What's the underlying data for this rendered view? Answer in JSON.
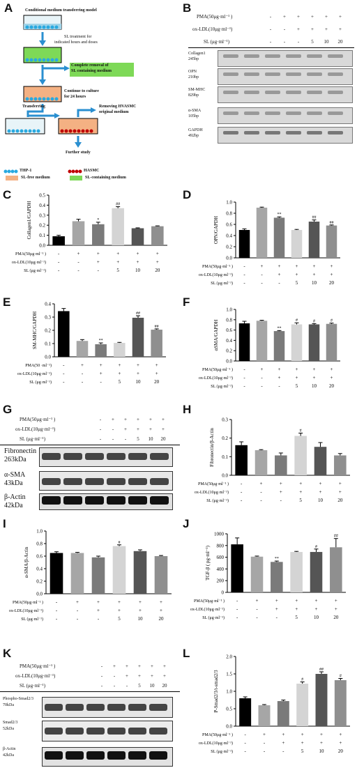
{
  "panels": {
    "A": "A",
    "B": "B",
    "C": "C",
    "D": "D",
    "E": "E",
    "F": "F",
    "G": "G",
    "H": "H",
    "I": "I",
    "J": "J",
    "K": "K",
    "L": "L"
  },
  "panelA": {
    "title": "Conditional medium transferring model",
    "step1": "SL treatment  for",
    "step1b": "indicated hours and doses",
    "step2": "Complete removal of",
    "step2b": "SL containing medium",
    "step3": "Continue to culture",
    "step3b": "for 24 hours",
    "transferring": "Transferring",
    "removing": "Removing HVASMC",
    "removingb": "original medium",
    "further": "Further study",
    "legend": {
      "thp1": "THP-1",
      "hasmc": "HASMC",
      "slfree": "SL-free medium",
      "slcont": "SL-containing medium"
    }
  },
  "treat": {
    "pma": "PMA(50μg·ml⁻¹ )",
    "oxldl": "ox-LDL(10μg·ml⁻¹)",
    "sl": "SL (μg·ml⁻¹)",
    "pma_row": [
      "-",
      "+",
      "+",
      "+",
      "+",
      "+"
    ],
    "ox_row": [
      "-",
      "-",
      "+",
      "+",
      "+",
      "+"
    ],
    "sl_row": [
      "-",
      "-",
      "-",
      "5",
      "10",
      "20"
    ]
  },
  "treatE": {
    "pma": "PMA(50 ·ml⁻¹)"
  },
  "blotB": [
    {
      "name": "Collagen1",
      "size": "245bp"
    },
    {
      "name": "OPN",
      "size": "210bp"
    },
    {
      "name": "SM-MHC",
      "size": "829bp"
    },
    {
      "name": "α-SMA",
      "size": "105bp"
    },
    {
      "name": "GAPDH",
      "size": "492bp"
    }
  ],
  "blotG": [
    {
      "name": "Fibronectin",
      "size": "263kDa"
    },
    {
      "name": "α-SMA",
      "size": "43kDa"
    },
    {
      "name": "β-Actin",
      "size": "42kDa"
    }
  ],
  "blotK": [
    {
      "name": "Phospho-Smad2/3",
      "size": "70kDa"
    },
    {
      "name": "Smad2/3",
      "size": "52kDa"
    },
    {
      "name": "β-Actin",
      "size": "42kDa"
    }
  ],
  "colors": {
    "bars": [
      "#000000",
      "#a6a6a6",
      "#7a7a7a",
      "#d4d4d4",
      "#555555",
      "#8f8f8f"
    ]
  },
  "chart_data": [
    {
      "id": "C",
      "type": "bar",
      "ylabel": "Collagen1/GAPDH",
      "ylim": [
        0,
        0.5
      ],
      "yticks": [
        "0.0",
        "0.1",
        "0.2",
        "0.3",
        "0.4",
        "0.5"
      ],
      "values": [
        0.09,
        0.24,
        0.21,
        0.37,
        0.17,
        0.19
      ],
      "errors": [
        0.01,
        0.02,
        0.02,
        0.015,
        0.004,
        0.004
      ],
      "sig": [
        "",
        "",
        "*",
        "##",
        "",
        ""
      ]
    },
    {
      "id": "D",
      "type": "bar",
      "ylabel": "OPN/GAPDH",
      "ylim": [
        0,
        1.0
      ],
      "yticks": [
        "0.0",
        "0.2",
        "0.4",
        "0.6",
        "0.8",
        "1.0"
      ],
      "values": [
        0.5,
        0.9,
        0.72,
        0.5,
        0.65,
        0.58
      ],
      "errors": [
        0.02,
        0.01,
        0.015,
        0.01,
        0.03,
        0.01
      ],
      "sig": [
        "",
        "",
        "**",
        "",
        "##",
        "##"
      ]
    },
    {
      "id": "E",
      "type": "bar",
      "ylabel": "SM-MHC/GAPDH",
      "ylim": [
        0,
        0.4
      ],
      "yticks": [
        "0.0",
        "0.1",
        "0.2",
        "0.3",
        "0.4"
      ],
      "values": [
        0.345,
        0.12,
        0.095,
        0.105,
        0.295,
        0.205
      ],
      "errors": [
        0.02,
        0.01,
        0.01,
        0.004,
        0.015,
        0.006
      ],
      "sig": [
        "",
        "",
        "**",
        "",
        "##",
        "##"
      ]
    },
    {
      "id": "F",
      "type": "bar",
      "ylabel": "αSMA/GAPDH",
      "ylim": [
        0,
        1.0
      ],
      "yticks": [
        "0.0",
        "0.2",
        "0.4",
        "0.6",
        "0.8",
        "1.0"
      ],
      "values": [
        0.73,
        0.78,
        0.58,
        0.71,
        0.71,
        0.72
      ],
      "errors": [
        0.04,
        0.01,
        0.01,
        0.03,
        0.015,
        0.015
      ],
      "sig": [
        "",
        "",
        "**",
        "#",
        "#",
        "#"
      ]
    },
    {
      "id": "H",
      "type": "bar",
      "ylabel": "Fibronectin/β-Actin",
      "ylim": [
        0,
        0.3
      ],
      "yticks": [
        "0.0",
        "0.1",
        "0.2",
        "0.3"
      ],
      "values": [
        0.162,
        0.135,
        0.107,
        0.212,
        0.153,
        0.107
      ],
      "errors": [
        0.018,
        0.003,
        0.013,
        0.015,
        0.023,
        0.01
      ],
      "sig": [
        "",
        "",
        "",
        "#",
        "",
        ""
      ]
    },
    {
      "id": "I",
      "type": "bar",
      "ylabel": "α-SMA/β-Actin",
      "ylim": [
        0,
        1.0
      ],
      "yticks": [
        "0.0",
        "0.2",
        "0.4",
        "0.6",
        "0.8",
        "1.0"
      ],
      "values": [
        0.65,
        0.65,
        0.58,
        0.76,
        0.68,
        0.6
      ],
      "errors": [
        0.02,
        0.01,
        0.02,
        0.02,
        0.02,
        0.01
      ],
      "sig": [
        "",
        "",
        "",
        "#",
        "",
        ""
      ]
    },
    {
      "id": "J",
      "type": "bar",
      "ylabel": "TGF-β ( pg·ml⁻¹)",
      "ylim": [
        0,
        1000
      ],
      "yticks": [
        "0",
        "200",
        "400",
        "600",
        "800",
        "1000"
      ],
      "values": [
        820,
        610,
        520,
        690,
        690,
        770
      ],
      "errors": [
        110,
        10,
        15,
        10,
        50,
        150
      ],
      "sig": [
        "",
        "",
        "**",
        "",
        "#",
        "##"
      ]
    },
    {
      "id": "L",
      "type": "bar",
      "ylabel": "P-Smad2/3/t-smad2/3",
      "ylim": [
        0,
        2.0
      ],
      "yticks": [
        "0.0",
        "0.5",
        "1.0",
        "1.5",
        "2.0"
      ],
      "values": [
        0.8,
        0.6,
        0.72,
        1.22,
        1.5,
        1.32
      ],
      "errors": [
        0.04,
        0.02,
        0.03,
        0.05,
        0.06,
        0.05
      ],
      "sig": [
        "",
        "",
        "",
        "#",
        "##",
        "#"
      ]
    }
  ]
}
